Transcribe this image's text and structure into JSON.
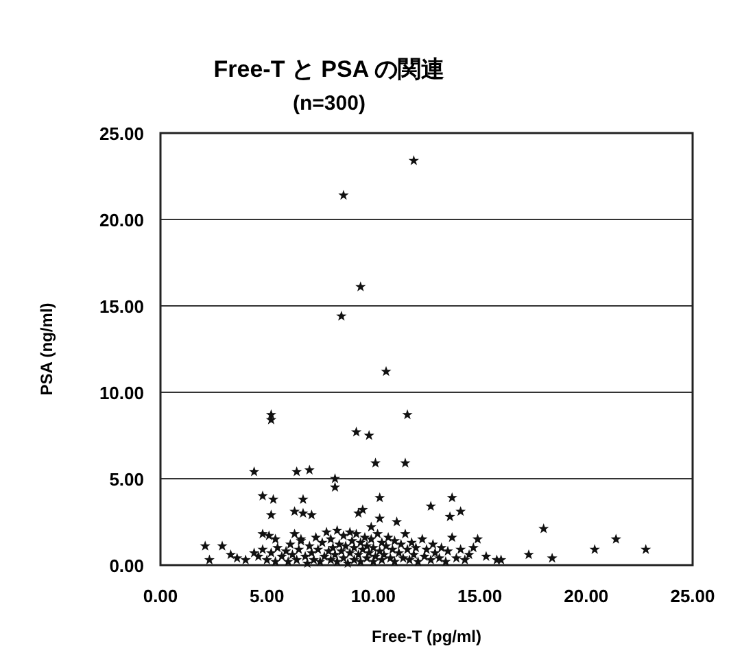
{
  "chart_data": {
    "type": "scatter",
    "title": "Free-T と PSA の関連",
    "subtitle": "(n=300)",
    "xlabel": "Free-T (pg/ml)",
    "ylabel": "PSA (ng/ml)",
    "xlim": [
      0,
      25
    ],
    "ylim": [
      0,
      25
    ],
    "xticks": [
      {
        "value": 0,
        "label": "0.00"
      },
      {
        "value": 5,
        "label": "5.00"
      },
      {
        "value": 10,
        "label": "10.00"
      },
      {
        "value": 15,
        "label": "15.00"
      },
      {
        "value": 20,
        "label": "20.00"
      },
      {
        "value": 25,
        "label": "25.00"
      }
    ],
    "yticks": [
      {
        "value": 0,
        "label": "0.00"
      },
      {
        "value": 5,
        "label": "5.00"
      },
      {
        "value": 10,
        "label": "10.00"
      },
      {
        "value": 15,
        "label": "15.00"
      },
      {
        "value": 20,
        "label": "20.00"
      },
      {
        "value": 25,
        "label": "25.00"
      }
    ],
    "grid": "y",
    "marker": "star",
    "series": [
      {
        "color": "#111111",
        "x": [
          11.9,
          8.6,
          9.4,
          8.5,
          10.6,
          5.2,
          5.2,
          9.2,
          9.8,
          11.6,
          10.1,
          11.5,
          4.4,
          6.4,
          7.0,
          8.2,
          8.2,
          4.8,
          5.3,
          6.7,
          6.3,
          6.7,
          7.1,
          5.2,
          9.5,
          9.3,
          10.3,
          10.3,
          9.9,
          13.7,
          13.6,
          14.1,
          12.7,
          11.1,
          18.0,
          21.4,
          20.4,
          22.8,
          18.4,
          17.3,
          16.0,
          15.8,
          15.3,
          14.9,
          14.7,
          2.1,
          2.3,
          2.9,
          3.3,
          3.6,
          4.0,
          4.4,
          4.8,
          5.1,
          5.4,
          6.3,
          6.6,
          4.6,
          4.8,
          5.0,
          5.2,
          5.4,
          5.5,
          5.7,
          5.9,
          6.0,
          6.1,
          6.2,
          6.4,
          6.5,
          6.6,
          6.8,
          6.9,
          7.0,
          7.1,
          7.2,
          7.3,
          7.4,
          7.5,
          7.6,
          7.7,
          7.8,
          7.9,
          8.0,
          8.0,
          8.1,
          8.2,
          8.3,
          8.3,
          8.4,
          8.5,
          8.6,
          8.6,
          8.7,
          8.8,
          8.9,
          8.9,
          9.0,
          9.1,
          9.1,
          9.2,
          9.3,
          9.4,
          9.4,
          9.5,
          9.6,
          9.7,
          9.7,
          9.8,
          9.9,
          10.0,
          10.0,
          10.1,
          10.2,
          10.3,
          10.4,
          10.4,
          10.5,
          10.6,
          10.7,
          10.8,
          10.9,
          11.0,
          11.0,
          11.2,
          11.3,
          11.4,
          11.5,
          11.6,
          11.7,
          11.8,
          11.9,
          12.0,
          12.1,
          12.3,
          12.4,
          12.5,
          12.7,
          12.8,
          12.9,
          13.1,
          13.2,
          13.4,
          13.5,
          13.7,
          13.9,
          14.1,
          14.3,
          14.5
        ],
        "values": [
          23.4,
          21.4,
          16.1,
          14.4,
          11.2,
          8.7,
          8.4,
          7.7,
          7.5,
          8.7,
          5.9,
          5.9,
          5.4,
          5.4,
          5.5,
          5.0,
          4.5,
          4.0,
          3.8,
          3.8,
          3.1,
          3.0,
          2.9,
          2.9,
          3.2,
          3.0,
          2.7,
          3.9,
          2.2,
          3.9,
          2.8,
          3.1,
          3.4,
          2.5,
          2.1,
          1.5,
          0.9,
          0.9,
          0.4,
          0.6,
          0.3,
          0.3,
          0.5,
          1.5,
          1.0,
          1.1,
          0.3,
          1.1,
          0.6,
          0.4,
          0.3,
          0.7,
          1.8,
          1.7,
          1.5,
          1.8,
          1.5,
          0.5,
          0.9,
          0.3,
          0.7,
          0.2,
          1.0,
          0.5,
          0.8,
          0.2,
          1.2,
          0.6,
          0.3,
          0.9,
          1.4,
          0.5,
          0.1,
          1.1,
          0.7,
          0.3,
          1.6,
          0.9,
          0.2,
          1.3,
          0.5,
          1.9,
          0.8,
          0.3,
          1.5,
          1.0,
          0.6,
          2.0,
          0.2,
          1.2,
          0.8,
          1.7,
          0.4,
          1.1,
          0.1,
          1.9,
          0.7,
          1.4,
          0.3,
          1.0,
          1.8,
          0.6,
          1.3,
          0.2,
          0.9,
          1.6,
          0.4,
          1.1,
          0.7,
          1.5,
          0.2,
          1.0,
          0.5,
          1.8,
          0.8,
          1.3,
          0.3,
          0.6,
          1.1,
          1.6,
          0.4,
          0.9,
          1.4,
          0.2,
          0.7,
          1.2,
          0.4,
          1.8,
          0.9,
          0.3,
          1.3,
          0.6,
          1.0,
          0.2,
          1.5,
          0.5,
          0.9,
          0.3,
          1.2,
          0.7,
          0.4,
          1.0,
          0.2,
          0.8,
          1.6,
          0.4,
          0.9,
          0.3,
          0.6
        ]
      }
    ]
  }
}
